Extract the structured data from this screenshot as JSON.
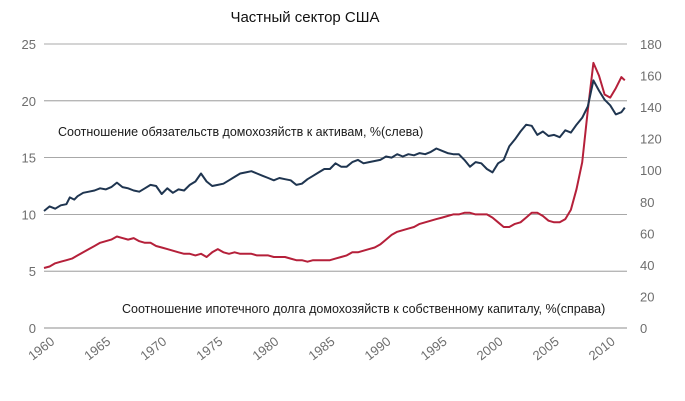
{
  "chart_data": {
    "type": "line",
    "title": "Частный сектор США",
    "grid": true,
    "x_range": [
      1960,
      2012
    ],
    "x_ticks": [
      "1960",
      "1965",
      "1970",
      "1975",
      "1980",
      "1985",
      "1990",
      "1995",
      "2000",
      "2005",
      "2010"
    ],
    "y_left": {
      "range": [
        0,
        25
      ],
      "ticks": [
        "0",
        "5",
        "10",
        "15",
        "20",
        "25"
      ]
    },
    "y_right": {
      "range": [
        0,
        180
      ],
      "ticks": [
        "0",
        "20",
        "40",
        "60",
        "80",
        "100",
        "120",
        "140",
        "160",
        "180"
      ]
    },
    "colors": {
      "series_1": "#1f3550",
      "series_2": "#b5203a",
      "grid": "#8c8c8c",
      "text": "#6e6e6e"
    },
    "series": [
      {
        "name": "Соотношение обязательств домохозяйств к активам, %(слева)",
        "axis": "left",
        "points": [
          [
            1960.0,
            10.3
          ],
          [
            1960.5,
            10.7
          ],
          [
            1961.0,
            10.5
          ],
          [
            1961.5,
            10.8
          ],
          [
            1962.0,
            10.9
          ],
          [
            1962.3,
            11.5
          ],
          [
            1962.7,
            11.3
          ],
          [
            1963.0,
            11.6
          ],
          [
            1963.5,
            11.9
          ],
          [
            1964.0,
            12.0
          ],
          [
            1964.5,
            12.1
          ],
          [
            1965.0,
            12.3
          ],
          [
            1965.5,
            12.2
          ],
          [
            1966.0,
            12.4
          ],
          [
            1966.5,
            12.8
          ],
          [
            1967.0,
            12.4
          ],
          [
            1967.5,
            12.3
          ],
          [
            1968.0,
            12.1
          ],
          [
            1968.5,
            12.0
          ],
          [
            1969.0,
            12.3
          ],
          [
            1969.5,
            12.6
          ],
          [
            1970.0,
            12.5
          ],
          [
            1970.5,
            11.8
          ],
          [
            1971.0,
            12.3
          ],
          [
            1971.5,
            11.9
          ],
          [
            1972.0,
            12.2
          ],
          [
            1972.5,
            12.1
          ],
          [
            1973.0,
            12.6
          ],
          [
            1973.5,
            12.9
          ],
          [
            1974.0,
            13.6
          ],
          [
            1974.5,
            12.9
          ],
          [
            1975.0,
            12.5
          ],
          [
            1975.5,
            12.6
          ],
          [
            1976.0,
            12.7
          ],
          [
            1976.5,
            13.0
          ],
          [
            1977.0,
            13.3
          ],
          [
            1977.5,
            13.6
          ],
          [
            1978.0,
            13.7
          ],
          [
            1978.5,
            13.8
          ],
          [
            1979.0,
            13.6
          ],
          [
            1979.5,
            13.4
          ],
          [
            1980.0,
            13.2
          ],
          [
            1980.5,
            13.0
          ],
          [
            1981.0,
            13.2
          ],
          [
            1981.5,
            13.1
          ],
          [
            1982.0,
            13.0
          ],
          [
            1982.5,
            12.6
          ],
          [
            1983.0,
            12.7
          ],
          [
            1983.5,
            13.1
          ],
          [
            1984.0,
            13.4
          ],
          [
            1984.5,
            13.7
          ],
          [
            1985.0,
            14.0
          ],
          [
            1985.5,
            14.0
          ],
          [
            1986.0,
            14.5
          ],
          [
            1986.5,
            14.2
          ],
          [
            1987.0,
            14.2
          ],
          [
            1987.5,
            14.6
          ],
          [
            1988.0,
            14.8
          ],
          [
            1988.5,
            14.5
          ],
          [
            1989.0,
            14.6
          ],
          [
            1989.5,
            14.7
          ],
          [
            1990.0,
            14.8
          ],
          [
            1990.5,
            15.1
          ],
          [
            1991.0,
            15.0
          ],
          [
            1991.5,
            15.3
          ],
          [
            1992.0,
            15.1
          ],
          [
            1992.5,
            15.3
          ],
          [
            1993.0,
            15.2
          ],
          [
            1993.5,
            15.4
          ],
          [
            1994.0,
            15.3
          ],
          [
            1994.5,
            15.5
          ],
          [
            1995.0,
            15.8
          ],
          [
            1995.5,
            15.6
          ],
          [
            1996.0,
            15.4
          ],
          [
            1996.5,
            15.3
          ],
          [
            1997.0,
            15.3
          ],
          [
            1997.5,
            14.8
          ],
          [
            1998.0,
            14.2
          ],
          [
            1998.5,
            14.6
          ],
          [
            1999.0,
            14.5
          ],
          [
            1999.5,
            14.0
          ],
          [
            2000.0,
            13.7
          ],
          [
            2000.5,
            14.5
          ],
          [
            2001.0,
            14.8
          ],
          [
            2001.5,
            16.0
          ],
          [
            2002.0,
            16.6
          ],
          [
            2002.5,
            17.3
          ],
          [
            2003.0,
            17.9
          ],
          [
            2003.5,
            17.8
          ],
          [
            2004.0,
            17.0
          ],
          [
            2004.5,
            17.3
          ],
          [
            2005.0,
            16.9
          ],
          [
            2005.5,
            17.0
          ],
          [
            2006.0,
            16.8
          ],
          [
            2006.5,
            17.4
          ],
          [
            2007.0,
            17.2
          ],
          [
            2007.5,
            17.9
          ],
          [
            2008.0,
            18.5
          ],
          [
            2008.5,
            19.5
          ],
          [
            2009.0,
            21.8
          ],
          [
            2009.5,
            20.9
          ],
          [
            2010.0,
            20.1
          ],
          [
            2010.5,
            19.6
          ],
          [
            2011.0,
            18.8
          ],
          [
            2011.5,
            19.0
          ],
          [
            2011.8,
            19.4
          ]
        ]
      },
      {
        "name": "Соотношение ипотечного долга домохозяйств к собственному капиталу, %(справа)",
        "axis": "right",
        "points": [
          [
            1960.0,
            38
          ],
          [
            1960.5,
            39
          ],
          [
            1961.0,
            41
          ],
          [
            1961.5,
            42
          ],
          [
            1962.0,
            43
          ],
          [
            1962.5,
            44
          ],
          [
            1963.0,
            46
          ],
          [
            1963.5,
            48
          ],
          [
            1964.0,
            50
          ],
          [
            1964.5,
            52
          ],
          [
            1965.0,
            54
          ],
          [
            1965.5,
            55
          ],
          [
            1966.0,
            56
          ],
          [
            1966.5,
            58
          ],
          [
            1967.0,
            57
          ],
          [
            1967.5,
            56
          ],
          [
            1968.0,
            57
          ],
          [
            1968.5,
            55
          ],
          [
            1969.0,
            54
          ],
          [
            1969.5,
            54
          ],
          [
            1970.0,
            52
          ],
          [
            1970.5,
            51
          ],
          [
            1971.0,
            50
          ],
          [
            1971.5,
            49
          ],
          [
            1972.0,
            48
          ],
          [
            1972.5,
            47
          ],
          [
            1973.0,
            47
          ],
          [
            1973.5,
            46
          ],
          [
            1974.0,
            47
          ],
          [
            1974.5,
            45
          ],
          [
            1975.0,
            48
          ],
          [
            1975.5,
            50
          ],
          [
            1976.0,
            48
          ],
          [
            1976.5,
            47
          ],
          [
            1977.0,
            48
          ],
          [
            1977.5,
            47
          ],
          [
            1978.0,
            47
          ],
          [
            1978.5,
            47
          ],
          [
            1979.0,
            46
          ],
          [
            1979.5,
            46
          ],
          [
            1980.0,
            46
          ],
          [
            1980.5,
            45
          ],
          [
            1981.0,
            45
          ],
          [
            1981.5,
            45
          ],
          [
            1982.0,
            44
          ],
          [
            1982.5,
            43
          ],
          [
            1983.0,
            43
          ],
          [
            1983.5,
            42
          ],
          [
            1984.0,
            43
          ],
          [
            1984.5,
            43
          ],
          [
            1985.0,
            43
          ],
          [
            1985.5,
            43
          ],
          [
            1986.0,
            44
          ],
          [
            1986.5,
            45
          ],
          [
            1987.0,
            46
          ],
          [
            1987.5,
            48
          ],
          [
            1988.0,
            48
          ],
          [
            1988.5,
            49
          ],
          [
            1989.0,
            50
          ],
          [
            1989.5,
            51
          ],
          [
            1990.0,
            53
          ],
          [
            1990.5,
            56
          ],
          [
            1991.0,
            59
          ],
          [
            1991.5,
            61
          ],
          [
            1992.0,
            62
          ],
          [
            1992.5,
            63
          ],
          [
            1993.0,
            64
          ],
          [
            1993.5,
            66
          ],
          [
            1994.0,
            67
          ],
          [
            1994.5,
            68
          ],
          [
            1995.0,
            69
          ],
          [
            1995.5,
            70
          ],
          [
            1996.0,
            71
          ],
          [
            1996.5,
            72
          ],
          [
            1997.0,
            72
          ],
          [
            1997.5,
            73
          ],
          [
            1998.0,
            73
          ],
          [
            1998.5,
            72
          ],
          [
            1999.0,
            72
          ],
          [
            1999.5,
            72
          ],
          [
            2000.0,
            70
          ],
          [
            2000.5,
            67
          ],
          [
            2001.0,
            64
          ],
          [
            2001.5,
            64
          ],
          [
            2002.0,
            66
          ],
          [
            2002.5,
            67
          ],
          [
            2003.0,
            70
          ],
          [
            2003.5,
            73
          ],
          [
            2004.0,
            73
          ],
          [
            2004.5,
            71
          ],
          [
            2005.0,
            68
          ],
          [
            2005.5,
            67
          ],
          [
            2006.0,
            67
          ],
          [
            2006.5,
            69
          ],
          [
            2007.0,
            75
          ],
          [
            2007.5,
            88
          ],
          [
            2008.0,
            105
          ],
          [
            2008.5,
            138
          ],
          [
            2009.0,
            168
          ],
          [
            2009.5,
            160
          ],
          [
            2010.0,
            148
          ],
          [
            2010.5,
            146
          ],
          [
            2011.0,
            152
          ],
          [
            2011.5,
            159
          ],
          [
            2011.8,
            157
          ]
        ]
      }
    ]
  }
}
